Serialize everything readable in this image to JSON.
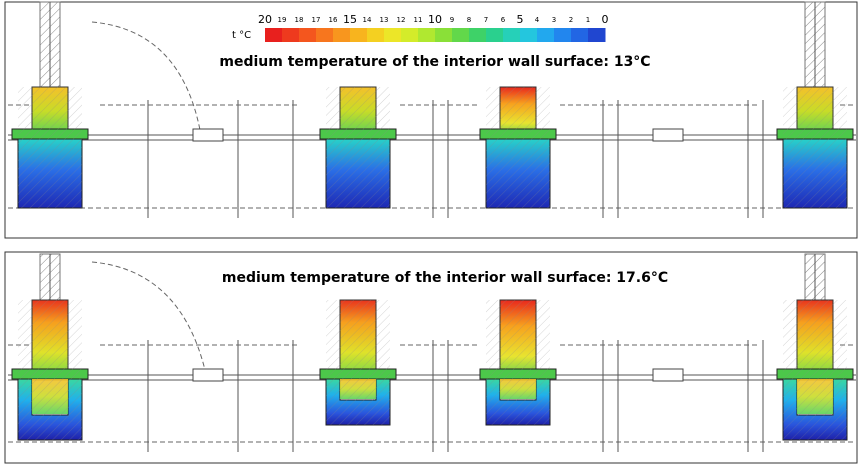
{
  "legend": {
    "unit": "t °C",
    "labels": [
      "20",
      "19",
      "18",
      "17",
      "16",
      "15",
      "14",
      "13",
      "12",
      "11",
      "10",
      "9",
      "8",
      "7",
      "6",
      "5",
      "4",
      "3",
      "2",
      "1",
      "0"
    ]
  },
  "panels": [
    {
      "caption": "medium temperature of the interior wall surface: 13°C"
    },
    {
      "caption": "medium temperature of the interior wall surface: 17.6°C"
    }
  ]
}
